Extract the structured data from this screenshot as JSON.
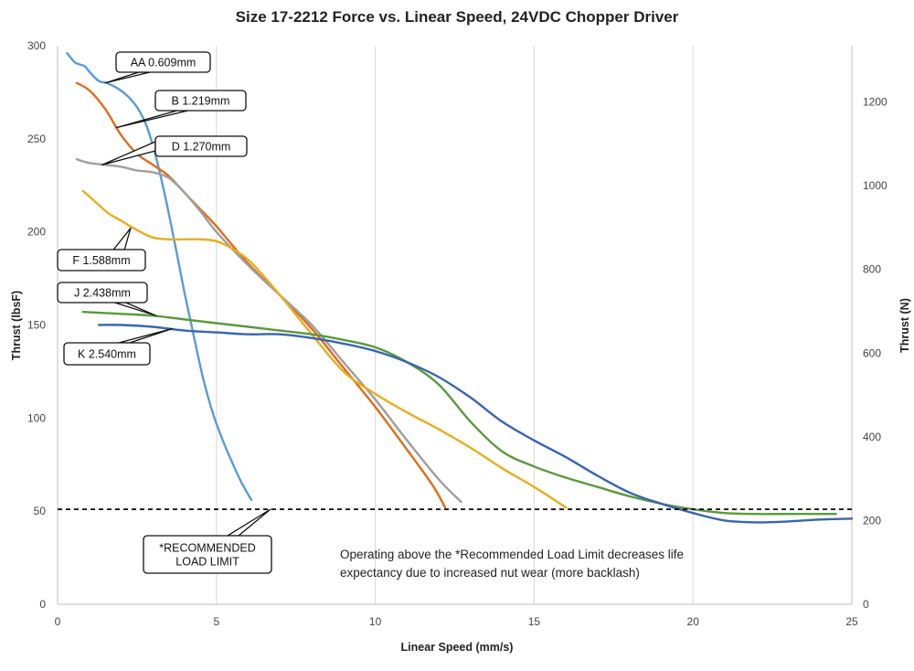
{
  "chart_data": {
    "type": "line",
    "title": "Size 17-2212 Force vs. Linear Speed, 24VDC Chopper Driver",
    "xlabel": "Linear Speed (mm/s)",
    "ylabel": "Thrust (lbsF)",
    "y2label": "Thrust (N)",
    "xlim": [
      0,
      25
    ],
    "ylim": [
      0,
      300
    ],
    "y2lim": [
      0,
      1334.5
    ],
    "x_ticks": [
      0,
      5,
      10,
      15,
      20,
      25
    ],
    "y_ticks": [
      0,
      50,
      100,
      150,
      200,
      250,
      300
    ],
    "y2_ticks": [
      0,
      200,
      400,
      600,
      800,
      1000,
      1200
    ],
    "grid": "vertical",
    "series": [
      {
        "name": "AA 0.609mm",
        "color": "#5B9BD5",
        "x": [
          0.3,
          0.55,
          0.85,
          1.0,
          1.3,
          1.55,
          1.9,
          2.2,
          2.5,
          2.8,
          3.1,
          3.4,
          3.7,
          4.0,
          4.3,
          4.6,
          4.9,
          5.2,
          5.5,
          5.8,
          6.1
        ],
        "y": [
          296,
          291,
          289,
          286,
          281,
          280,
          277,
          273,
          267,
          257,
          240,
          218,
          193,
          167,
          143,
          120,
          102,
          88,
          76,
          65,
          56
        ]
      },
      {
        "name": "B 1.219mm",
        "color": "#E06C1A",
        "x": [
          0.6,
          1.0,
          1.5,
          2.0,
          2.5,
          3.0,
          3.5,
          4.0,
          4.5,
          5.0,
          6.0,
          7.0,
          8.0,
          9.0,
          10.0,
          11.0,
          11.8,
          12.2
        ],
        "y": [
          280,
          276,
          266,
          252,
          242,
          236,
          230,
          221,
          212,
          203,
          183,
          166,
          148,
          127,
          106,
          83,
          64,
          52
        ]
      },
      {
        "name": "D 1.270mm",
        "color": "#9E9E9E",
        "x": [
          0.6,
          1.0,
          1.5,
          2.0,
          2.5,
          3.0,
          3.5,
          4.0,
          4.5,
          5.0,
          6.0,
          7.0,
          8.0,
          9.0,
          10.0,
          11.0,
          12.0,
          12.7
        ],
        "y": [
          239,
          237,
          236,
          235,
          233,
          232,
          229,
          221,
          211,
          200,
          182,
          166,
          150,
          130,
          110,
          88,
          67,
          55
        ]
      },
      {
        "name": "F 1.588mm",
        "color": "#E8AE1B",
        "x": [
          0.8,
          1.2,
          1.6,
          2.0,
          2.5,
          3.0,
          3.5,
          4.0,
          4.5,
          5.0,
          5.5,
          6.0,
          6.5,
          7.0,
          8.0,
          9.0,
          10.0,
          11.0,
          12.0,
          13.0,
          14.0,
          15.0,
          16.0
        ],
        "y": [
          222,
          216,
          210,
          206,
          201,
          197,
          196,
          196,
          196,
          195,
          191,
          185,
          176,
          166,
          145,
          125,
          113,
          103,
          94,
          84,
          73,
          63,
          52
        ]
      },
      {
        "name": "J 2.438mm",
        "color": "#5A9A3A",
        "x": [
          0.8,
          2.0,
          3.0,
          4.0,
          5.0,
          6.0,
          7.0,
          8.0,
          9.0,
          10.0,
          11.0,
          12.0,
          13.0,
          14.0,
          15.0,
          16.0,
          17.0,
          18.0,
          19.0,
          20.0,
          21.0,
          22.0,
          23.0,
          24.5
        ],
        "y": [
          157,
          156,
          155,
          153,
          151,
          149,
          147,
          145,
          142,
          138,
          130,
          118,
          98,
          82,
          74,
          68,
          63,
          58,
          54,
          51,
          49,
          48.5,
          48.5,
          48.5
        ]
      },
      {
        "name": "K 2.540mm",
        "color": "#3765B0",
        "x": [
          1.3,
          2.0,
          3.0,
          4.0,
          5.0,
          6.0,
          7.0,
          8.0,
          9.0,
          10.0,
          11.0,
          12.0,
          13.0,
          14.0,
          15.0,
          16.0,
          17.0,
          18.0,
          19.0,
          20.0,
          21.0,
          22.0,
          23.0,
          24.0,
          25.0
        ],
        "y": [
          150,
          150,
          149,
          147,
          146,
          145,
          145,
          143,
          140,
          136,
          130,
          122,
          111,
          98,
          88,
          79,
          69,
          60,
          54,
          49,
          45,
          44,
          44.5,
          45.5,
          46
        ]
      }
    ],
    "reference_line": {
      "y": 51,
      "style": "dashed",
      "color": "#000000"
    },
    "callouts": [
      {
        "label": "AA 0.609mm",
        "series": 0,
        "point": [
          1.5,
          280
        ]
      },
      {
        "label": "B 1.219mm",
        "series": 1,
        "point": [
          1.85,
          256
        ]
      },
      {
        "label": "D 1.270mm",
        "series": 2,
        "point": [
          1.4,
          236
        ]
      },
      {
        "label": "F 1.588mm",
        "series": 3,
        "point": [
          2.3,
          202
        ]
      },
      {
        "label": "J 2.438mm",
        "series": 4,
        "point": [
          3.1,
          155
        ]
      },
      {
        "label": "K 2.540mm",
        "series": 5,
        "point": [
          3.6,
          148
        ]
      },
      {
        "label_lines": [
          "*RECOMMENDED",
          "LOAD LIMIT"
        ],
        "point": [
          6.7,
          51
        ]
      }
    ],
    "annotation": [
      "Operating above the *Recommended Load Limit decreases life",
      "expectancy due to increased nut wear (more backlash)"
    ]
  }
}
